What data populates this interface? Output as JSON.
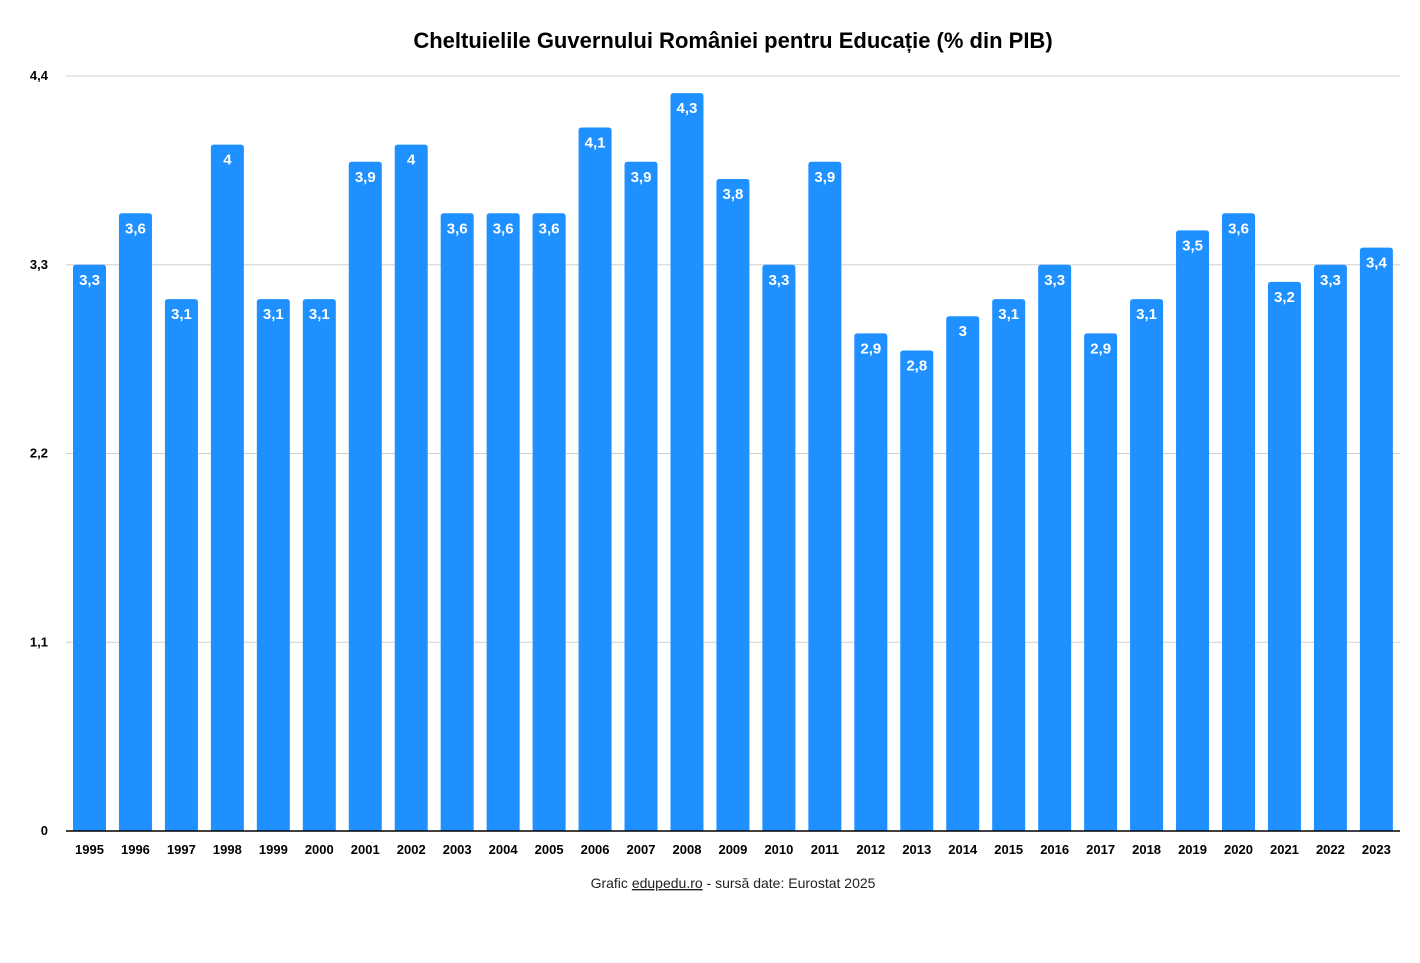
{
  "chart_data": {
    "type": "bar",
    "title": "Cheltuielile Guvernului României pentru Educație (% din PIB)",
    "xlabel": "",
    "ylabel": "",
    "ylim": [
      0,
      4.4
    ],
    "yticks": [
      "0",
      "1,1",
      "2,2",
      "3,3",
      "4,4"
    ],
    "ytick_values": [
      0,
      1.1,
      2.2,
      3.3,
      4.4
    ],
    "grid": true,
    "categories": [
      "1995",
      "1996",
      "1997",
      "1998",
      "1999",
      "2000",
      "2001",
      "2002",
      "2003",
      "2004",
      "2005",
      "2006",
      "2007",
      "2008",
      "2009",
      "2010",
      "2011",
      "2012",
      "2013",
      "2014",
      "2015",
      "2016",
      "2017",
      "2018",
      "2019",
      "2020",
      "2021",
      "2022",
      "2023"
    ],
    "values": [
      3.3,
      3.6,
      3.1,
      4,
      3.1,
      3.1,
      3.9,
      4,
      3.6,
      3.6,
      3.6,
      4.1,
      3.9,
      4.3,
      3.8,
      3.3,
      3.9,
      2.9,
      2.8,
      3,
      3.1,
      3.3,
      2.9,
      3.1,
      3.5,
      3.6,
      3.2,
      3.3,
      3.4
    ],
    "data_labels": [
      "3,3",
      "3,6",
      "3,1",
      "4",
      "3,1",
      "3,1",
      "3,9",
      "4",
      "3,6",
      "3,6",
      "3,6",
      "4,1",
      "3,9",
      "4,3",
      "3,8",
      "3,3",
      "3,9",
      "2,9",
      "2,8",
      "3",
      "3,1",
      "3,3",
      "2,9",
      "3,1",
      "3,5",
      "3,6",
      "3,2",
      "3,3",
      "3,4"
    ],
    "bar_color": "#1E90FF"
  },
  "footer": {
    "prefix": "Grafic ",
    "link": "edupedu.ro",
    "suffix": " - sursă date: Eurostat 2025"
  }
}
